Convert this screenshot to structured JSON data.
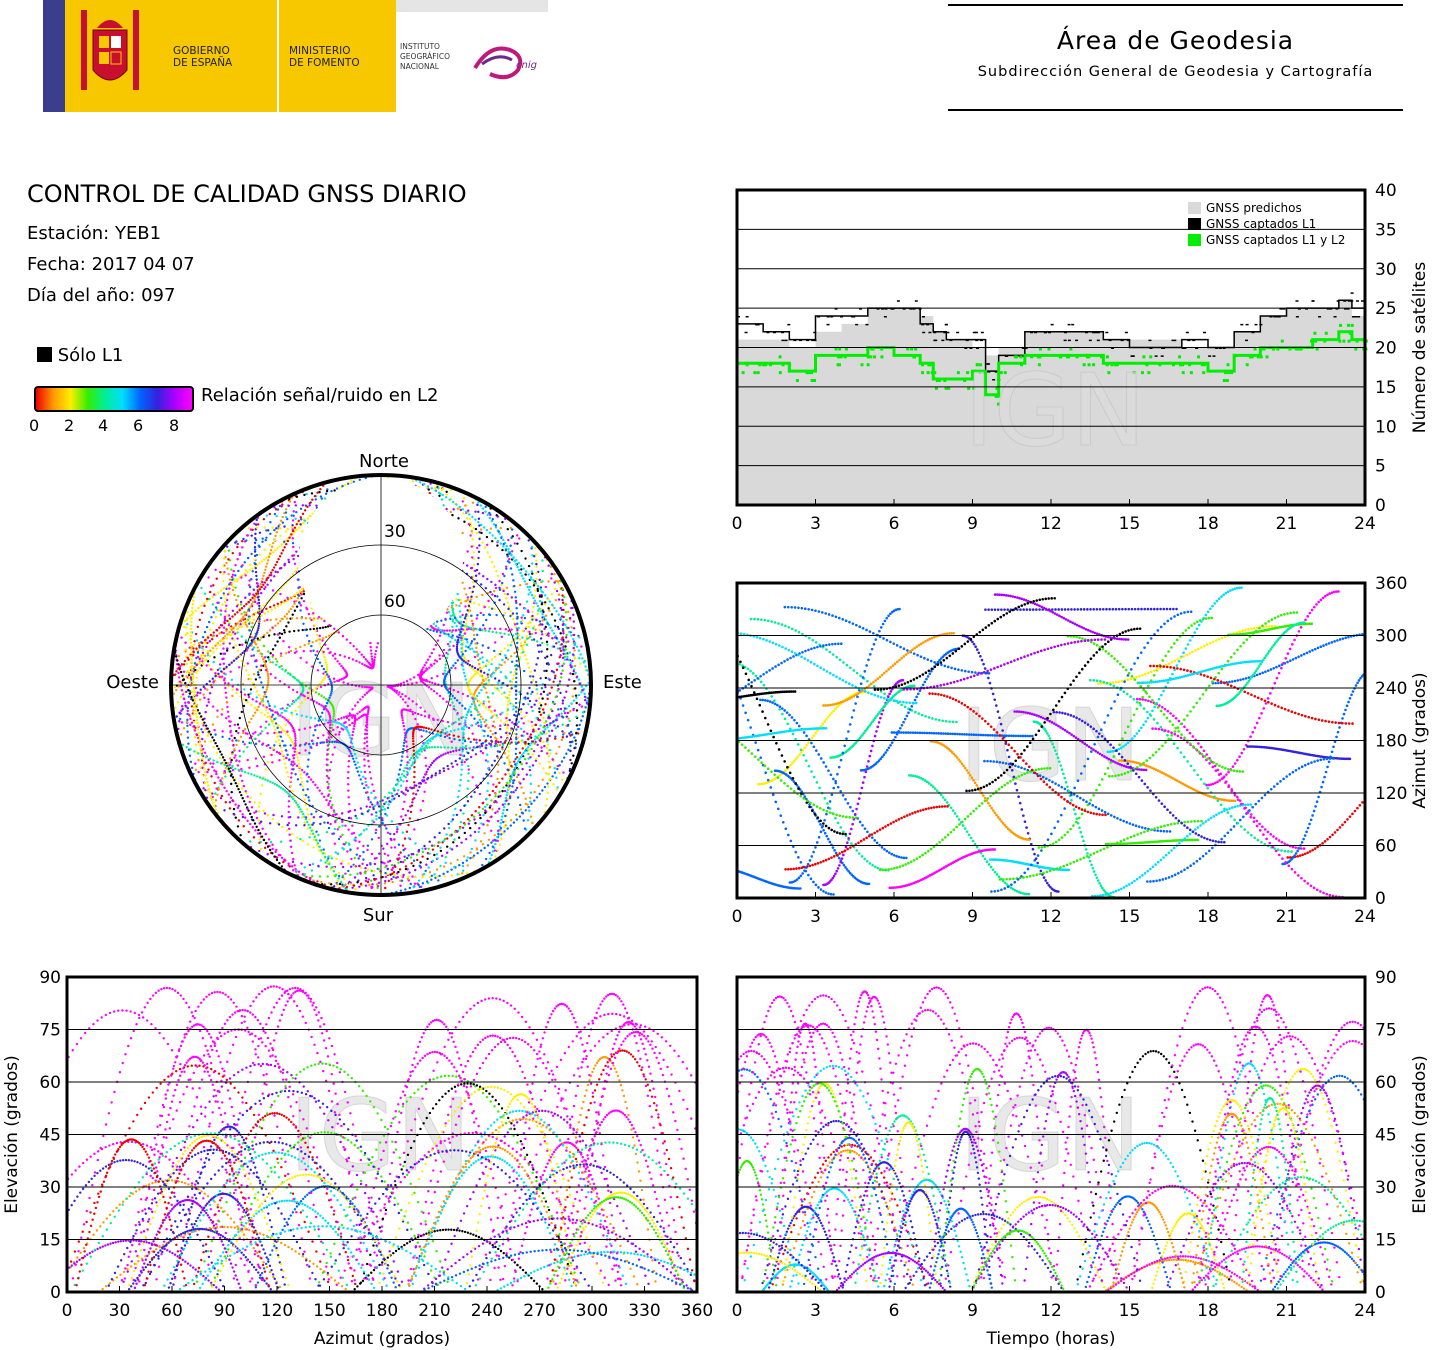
{
  "header": {
    "gov_line1": "GOBIERNO",
    "gov_line2": "DE ESPAÑA",
    "ministry_line1": "MINISTERIO",
    "ministry_line2": "DE FOMENTO",
    "ign_line1": "INSTITUTO",
    "ign_line2": "GEOGRÁFICO",
    "ign_line3": "NACIONAL",
    "cnig": "cnig",
    "area_title": "Área de Geodesia",
    "area_subtitle": "Subdirección General de Geodesia y Cartografía"
  },
  "report": {
    "title": "CONTROL DE CALIDAD GNSS DIARIO",
    "station": "Estación: YEB1",
    "date": "Fecha: 2017 04 07",
    "doy": "Día del año: 097"
  },
  "legend": {
    "l1_only": "Sólo L1",
    "snr_label": "Relación señal/ruido en L2",
    "snr_ticks": [
      "0",
      "2",
      "4",
      "6",
      "8"
    ]
  },
  "watermark": "IGN",
  "colors": {
    "predicted": "#d9d9d9",
    "l1": "#000000",
    "l1l2": "#00ee00",
    "snr_gradient": [
      "#ee0000",
      "#ff9900",
      "#ffee00",
      "#33ee00",
      "#00ee99",
      "#00ddff",
      "#0066ff",
      "#3322dd",
      "#aa00ff",
      "#ff00ff"
    ]
  },
  "chart_data": [
    {
      "id": "skyplot",
      "type": "scatter",
      "projection": "polar",
      "labels": {
        "north": "Norte",
        "south": "Sur",
        "west": "Oeste",
        "east": "Este"
      },
      "ring_labels": [
        "30",
        "60"
      ],
      "rings_elevation": [
        30,
        60
      ]
    },
    {
      "id": "satellite-count",
      "type": "area",
      "ylabel": "Número de satélites",
      "xticks": [
        "0",
        "3",
        "6",
        "9",
        "12",
        "15",
        "18",
        "21",
        "24"
      ],
      "yticks": [
        "0",
        "5",
        "10",
        "15",
        "20",
        "25",
        "30",
        "35",
        "40"
      ],
      "xlim": [
        0,
        24
      ],
      "ylim": [
        0,
        40
      ],
      "legend_position": "top-right",
      "series": [
        {
          "name": "GNSS predichos",
          "color": "#d9d9d9",
          "x": [
            0,
            1,
            2,
            3,
            4,
            5,
            6,
            7,
            7.5,
            8,
            9,
            9.5,
            10,
            11,
            12,
            13,
            14,
            15,
            16,
            17,
            18,
            19,
            20,
            21,
            22,
            23,
            23.5,
            24
          ],
          "values": [
            21,
            21,
            20,
            22,
            23,
            25,
            25,
            24,
            22,
            21,
            20,
            19,
            20,
            22,
            22,
            22,
            21,
            21,
            21,
            20,
            20,
            22,
            24,
            25,
            25,
            26,
            24,
            22
          ]
        },
        {
          "name": "GNSS captados L1",
          "color": "#000000",
          "x": [
            0,
            1,
            2,
            3,
            4,
            5,
            6,
            7,
            7.5,
            8,
            9,
            9.5,
            10,
            11,
            12,
            13,
            14,
            15,
            16,
            17,
            18,
            19,
            20,
            21,
            22,
            23,
            23.5,
            24
          ],
          "values": [
            23,
            22,
            21,
            24,
            24,
            25,
            25,
            23,
            22,
            21,
            21,
            17,
            19,
            22,
            22,
            22,
            21,
            20,
            20,
            21,
            20,
            22,
            24,
            25,
            25,
            26,
            25,
            22
          ]
        },
        {
          "name": "GNSS captados L1 y L2",
          "color": "#00ee00",
          "x": [
            0,
            1,
            2,
            3,
            4,
            5,
            6,
            7,
            7.5,
            8,
            9,
            9.5,
            10,
            11,
            12,
            13,
            14,
            15,
            16,
            17,
            18,
            19,
            20,
            21,
            22,
            23,
            23.5,
            24
          ],
          "values": [
            18,
            18,
            17,
            19,
            19,
            20,
            19,
            18,
            16,
            16,
            17,
            14,
            18,
            19,
            19,
            19,
            18,
            18,
            18,
            18,
            17,
            19,
            20,
            20,
            21,
            22,
            21,
            19
          ]
        }
      ]
    },
    {
      "id": "azimuth-time",
      "type": "scatter",
      "ylabel": "Azimut (grados)",
      "xticks": [
        "0",
        "3",
        "6",
        "9",
        "12",
        "15",
        "18",
        "21",
        "24"
      ],
      "yticks": [
        "0",
        "60",
        "120",
        "180",
        "240",
        "300",
        "360"
      ],
      "xlim": [
        0,
        24
      ],
      "ylim": [
        0,
        360
      ]
    },
    {
      "id": "elevation-azimuth",
      "type": "scatter",
      "xlabel": "Azimut (grados)",
      "ylabel": "Elevación (grados)",
      "xticks": [
        "0",
        "30",
        "60",
        "90",
        "120",
        "150",
        "180",
        "210",
        "240",
        "270",
        "300",
        "330",
        "360"
      ],
      "yticks": [
        "0",
        "15",
        "30",
        "45",
        "60",
        "75",
        "90"
      ],
      "xlim": [
        0,
        360
      ],
      "ylim": [
        0,
        90
      ]
    },
    {
      "id": "elevation-time",
      "type": "scatter",
      "xlabel": "Tiempo (horas)",
      "ylabel": "Elevación (grados)",
      "xticks": [
        "0",
        "3",
        "6",
        "9",
        "12",
        "15",
        "18",
        "21",
        "24"
      ],
      "yticks": [
        "0",
        "15",
        "30",
        "45",
        "60",
        "75",
        "90"
      ],
      "xlim": [
        0,
        24
      ],
      "ylim": [
        0,
        90
      ]
    }
  ]
}
